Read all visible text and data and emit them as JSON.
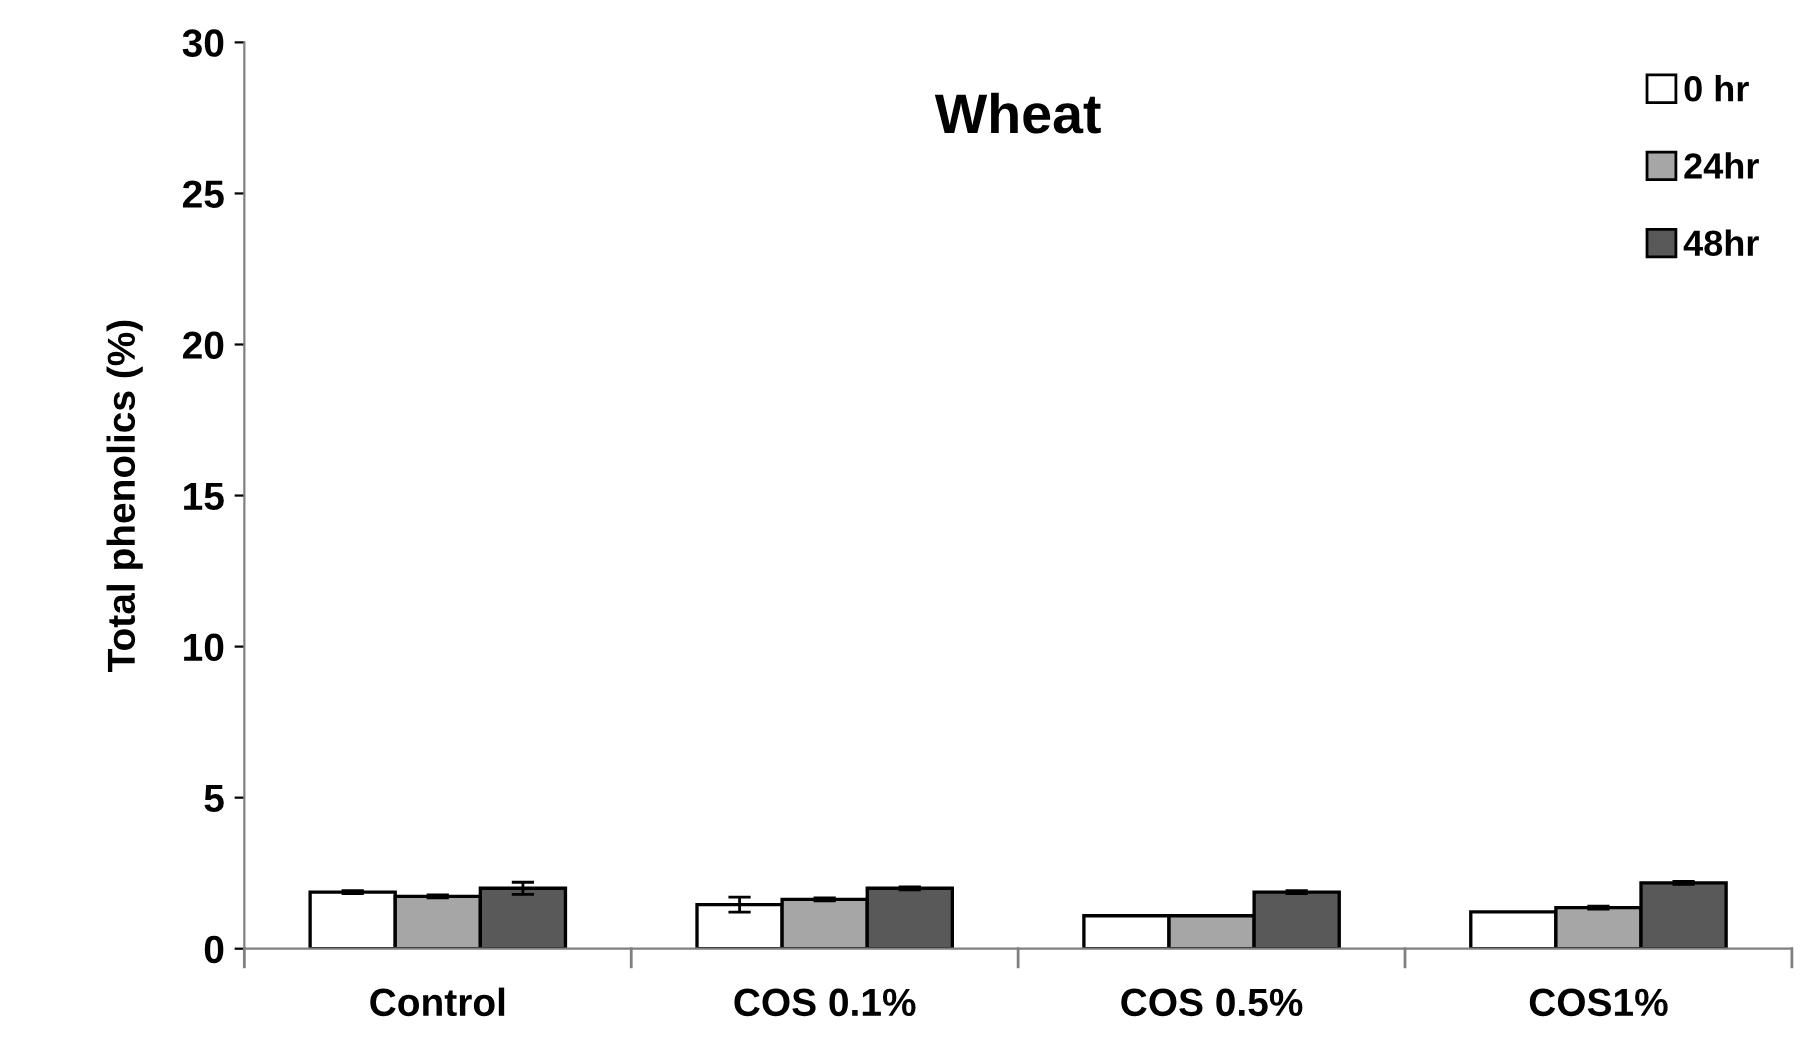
{
  "chart_data": {
    "type": "bar",
    "title": "Wheat",
    "ylabel": "Total phenolics (%)",
    "categories": [
      "Control",
      "COS 0.1%",
      "COS 0.5%",
      "COS1%"
    ],
    "series": [
      {
        "name": "0 hr",
        "color": "#ffffff",
        "values": [
          1.87,
          1.46,
          1.09,
          1.22
        ],
        "errors": [
          0.05,
          0.25,
          null,
          null
        ]
      },
      {
        "name": "24hr",
        "color": "#a6a6a6",
        "values": [
          1.73,
          1.63,
          1.09,
          1.36
        ],
        "errors": [
          0.05,
          0.05,
          null,
          0.05
        ]
      },
      {
        "name": "48hr",
        "color": "#595959",
        "values": [
          2.0,
          2.0,
          1.87,
          2.18
        ],
        "errors": [
          0.2,
          0.05,
          0.05,
          0.05
        ]
      }
    ],
    "ylim": [
      0,
      30
    ],
    "yticks": [
      0,
      5,
      10,
      15,
      20,
      25,
      30
    ],
    "grid": false,
    "legend": "top right"
  }
}
